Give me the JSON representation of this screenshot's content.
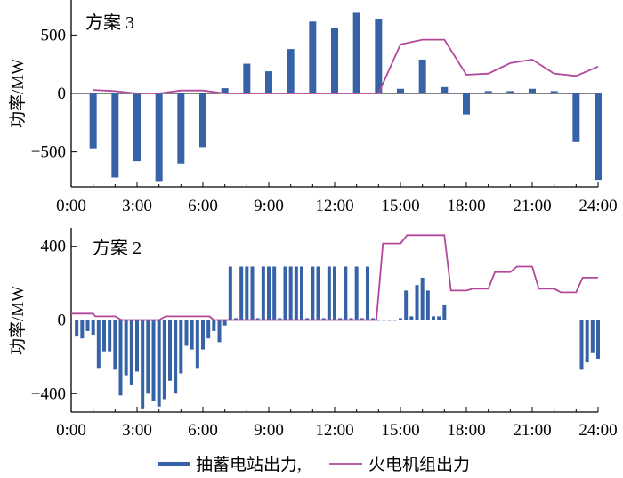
{
  "colors": {
    "pumped_storage": "#3663a8",
    "thermal": "#b1489a"
  },
  "legend": {
    "pumped_storage_label": "抽蓄电站出力,",
    "thermal_label": "火电机组出力"
  },
  "chart_data": [
    {
      "type": "bar",
      "panel_label": "方案 3",
      "ylabel": "功率/MW",
      "xlim": [
        0,
        24
      ],
      "ylim": [
        -800,
        800
      ],
      "x_tick_labels": [
        "0:00",
        "3:00",
        "6:00",
        "9:00",
        "12:00",
        "15:00",
        "18:00",
        "21:00",
        "24:00"
      ],
      "y_ticks": [
        -500,
        0,
        500
      ],
      "y_tick_labels": [
        "−500",
        "0",
        "500"
      ],
      "series": [
        {
          "name": "抽蓄电站出力",
          "kind": "bar",
          "x": [
            1,
            2,
            3,
            4,
            5,
            6,
            7,
            8,
            9,
            10,
            11,
            12,
            13,
            14,
            15,
            16,
            17,
            18,
            19,
            20,
            21,
            22,
            23,
            24
          ],
          "values": [
            -470,
            -720,
            -580,
            -750,
            -600,
            -460,
            45,
            255,
            190,
            380,
            615,
            560,
            690,
            640,
            40,
            290,
            55,
            -180,
            20,
            20,
            40,
            20,
            -410,
            -740
          ]
        },
        {
          "name": "火电机组出力",
          "kind": "line",
          "x": [
            1,
            2,
            3,
            4,
            5,
            6,
            7,
            8,
            9,
            10,
            11,
            12,
            13,
            14,
            15,
            16,
            17,
            18,
            19,
            20,
            21,
            22,
            23,
            24
          ],
          "values": [
            30,
            20,
            0,
            0,
            25,
            25,
            0,
            0,
            0,
            0,
            0,
            0,
            0,
            0,
            420,
            460,
            460,
            160,
            170,
            260,
            290,
            170,
            150,
            230
          ]
        }
      ]
    },
    {
      "type": "bar",
      "panel_label": "方案 2",
      "ylabel": "功率/MW",
      "xlim": [
        0,
        24
      ],
      "ylim": [
        -500,
        500
      ],
      "x_tick_labels": [
        "0:00",
        "3:00",
        "6:00",
        "9:00",
        "12:00",
        "15:00",
        "18:00",
        "21:00",
        "24:00"
      ],
      "y_ticks": [
        -400,
        0,
        400
      ],
      "y_tick_labels": [
        "−400",
        "0",
        "400"
      ],
      "series": [
        {
          "name": "抽蓄电站出力",
          "kind": "bar",
          "x": [
            0.25,
            0.5,
            0.75,
            1,
            1.25,
            1.5,
            1.75,
            2,
            2.25,
            2.5,
            2.75,
            3,
            3.25,
            3.5,
            3.75,
            4,
            4.25,
            4.5,
            4.75,
            5,
            5.25,
            5.5,
            5.75,
            6,
            6.25,
            6.5,
            6.75,
            7,
            7.25,
            7.5,
            7.75,
            8,
            8.25,
            8.5,
            8.75,
            9,
            9.25,
            9.5,
            9.75,
            10,
            10.25,
            10.5,
            10.75,
            11,
            11.25,
            11.5,
            11.75,
            12,
            12.25,
            12.5,
            12.75,
            13,
            13.25,
            13.5,
            13.75,
            14,
            14.25,
            14.5,
            14.75,
            15,
            15.25,
            15.5,
            15.75,
            16,
            16.25,
            16.5,
            16.75,
            17,
            23.25,
            23.5,
            23.75,
            24
          ],
          "values": [
            -90,
            -100,
            -60,
            -80,
            -260,
            -170,
            -170,
            -270,
            -410,
            -300,
            -350,
            -280,
            -480,
            -400,
            -440,
            -470,
            -430,
            -330,
            -400,
            -290,
            -140,
            -160,
            -260,
            -160,
            -100,
            -60,
            -120,
            -30,
            290,
            10,
            290,
            290,
            290,
            10,
            290,
            290,
            290,
            10,
            290,
            290,
            290,
            290,
            10,
            290,
            290,
            10,
            290,
            290,
            10,
            290,
            10,
            290,
            10,
            290,
            10,
            0,
            0,
            0,
            0,
            10,
            160,
            20,
            190,
            230,
            160,
            20,
            20,
            80,
            -270,
            -230,
            -180,
            -210
          ]
        },
        {
          "name": "火电机组出力",
          "kind": "line",
          "x": [
            0,
            1,
            1.1,
            2,
            2.3,
            4,
            4.3,
            6.3,
            6.5,
            13.9,
            14.2,
            15,
            15.3,
            17,
            17.3,
            18,
            18.3,
            19,
            19.3,
            20,
            20.3,
            21,
            21.3,
            22,
            22.3,
            23,
            23.3,
            24
          ],
          "values": [
            35,
            35,
            20,
            20,
            0,
            0,
            20,
            20,
            0,
            0,
            415,
            415,
            460,
            460,
            160,
            160,
            170,
            170,
            260,
            260,
            290,
            290,
            170,
            170,
            150,
            150,
            230,
            230
          ]
        }
      ]
    }
  ]
}
